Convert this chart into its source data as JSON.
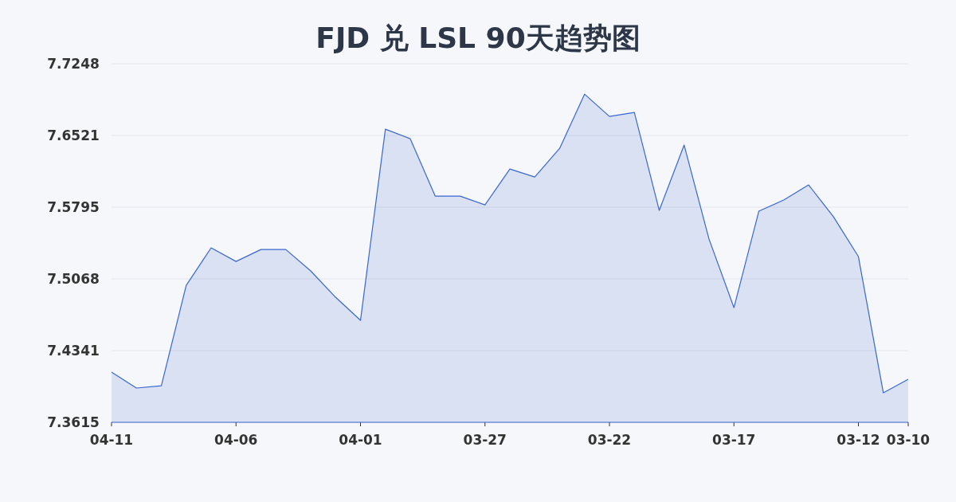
{
  "chart_data": {
    "type": "area",
    "title": "FJD 兑 LSL 90天趋势图",
    "categories": [
      "04-11",
      null,
      null,
      null,
      null,
      "04-06",
      null,
      null,
      null,
      null,
      "04-01",
      null,
      null,
      null,
      null,
      "03-27",
      null,
      null,
      null,
      null,
      "03-22",
      null,
      null,
      null,
      null,
      "03-17",
      null,
      null,
      null,
      null,
      "03-12",
      null,
      "03-10"
    ],
    "values": [
      7.4124,
      7.3962,
      7.3986,
      7.5003,
      7.5383,
      7.5245,
      7.5366,
      7.5366,
      7.5149,
      7.4882,
      7.4648,
      7.6585,
      7.6488,
      7.5907,
      7.5907,
      7.5818,
      7.6181,
      7.6101,
      7.6391,
      7.694,
      7.6714,
      7.6754,
      7.5762,
      7.6424,
      7.5471,
      7.4777,
      7.5754,
      7.5867,
      7.602,
      7.5697,
      7.5294,
      7.3914,
      7.4051
    ],
    "color": "#3a67d0",
    "ylim": [
      7.3615,
      7.7248
    ],
    "yticks": [
      7.3615,
      7.4341,
      7.5068,
      7.5795,
      7.6521,
      7.7248
    ],
    "grid": "y"
  }
}
